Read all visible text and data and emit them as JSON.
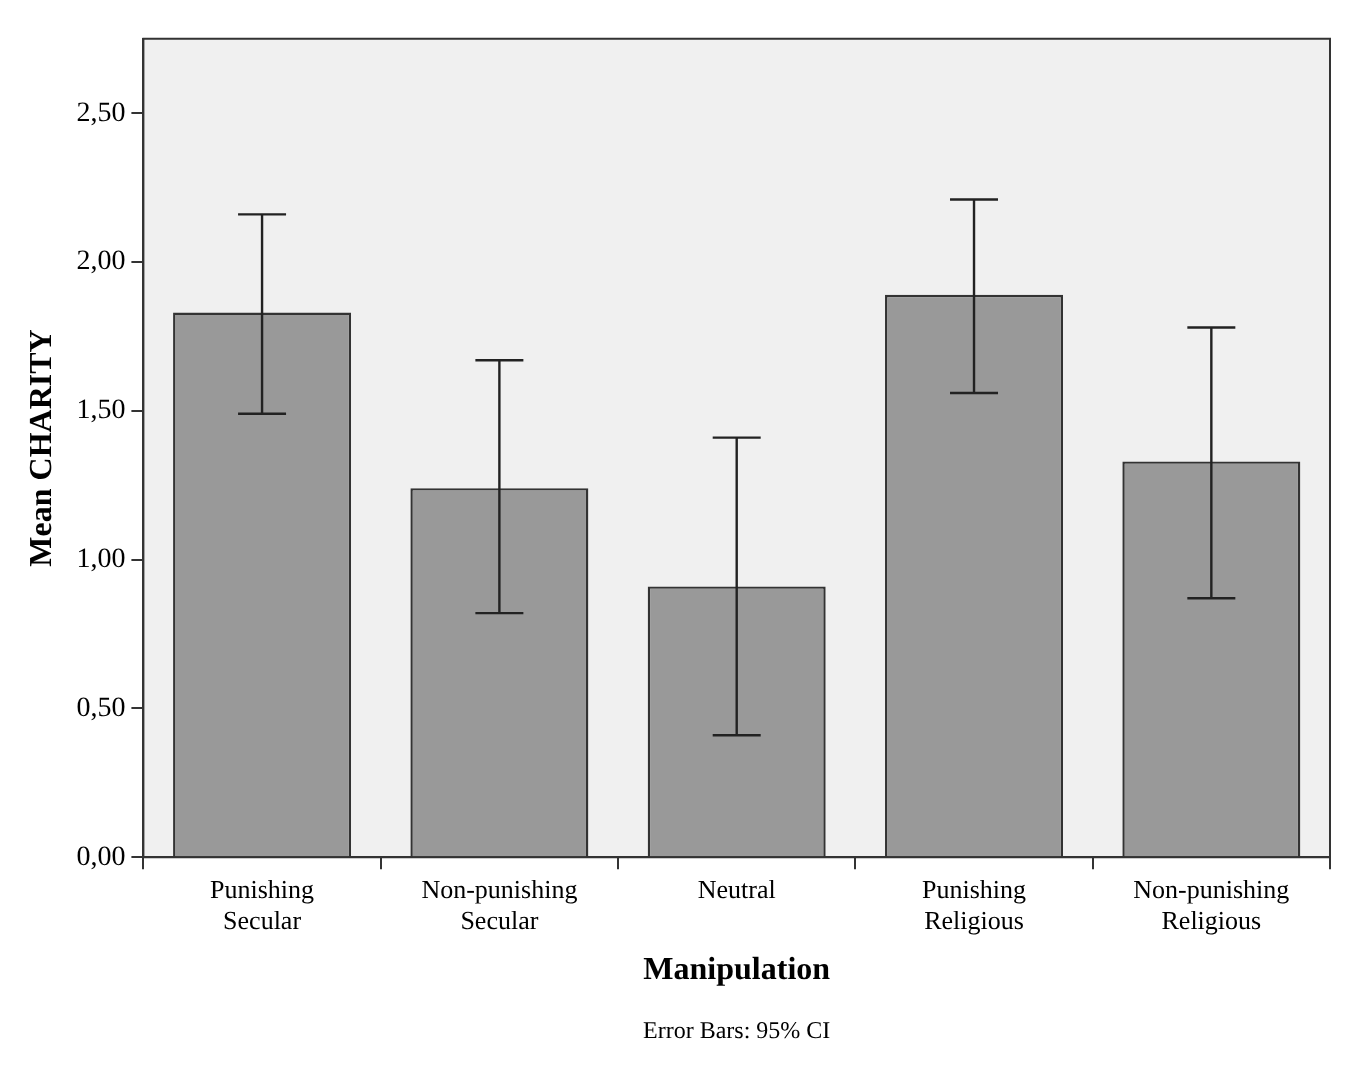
{
  "chart_data": {
    "type": "bar",
    "xlabel": "Manipulation",
    "ylabel": "Mean CHARITY",
    "categories": [
      "Punishing Secular",
      "Non-punishing Secular",
      "Neutral",
      "Punishing Religious",
      "Non-punishing Religious"
    ],
    "values": [
      1.83,
      1.24,
      0.91,
      1.89,
      1.33
    ],
    "errors": [
      [
        1.49,
        2.16
      ],
      [
        0.82,
        1.67
      ],
      [
        0.41,
        1.41
      ],
      [
        1.56,
        2.21
      ],
      [
        0.87,
        1.78
      ]
    ],
    "color": "#999999",
    "ylim": [
      0,
      2.75
    ],
    "yticks": [
      {
        "value": 0,
        "label": "0,00"
      },
      {
        "value": 0.5,
        "label": "0,50"
      },
      {
        "value": 1,
        "label": "1,00"
      },
      {
        "value": 1.5,
        "label": "1,50"
      },
      {
        "value": 2,
        "label": "2,00"
      },
      {
        "value": 2.5,
        "label": "2,50"
      }
    ],
    "grid": false,
    "annotations": [
      "Error Bars: 95% CI"
    ]
  }
}
